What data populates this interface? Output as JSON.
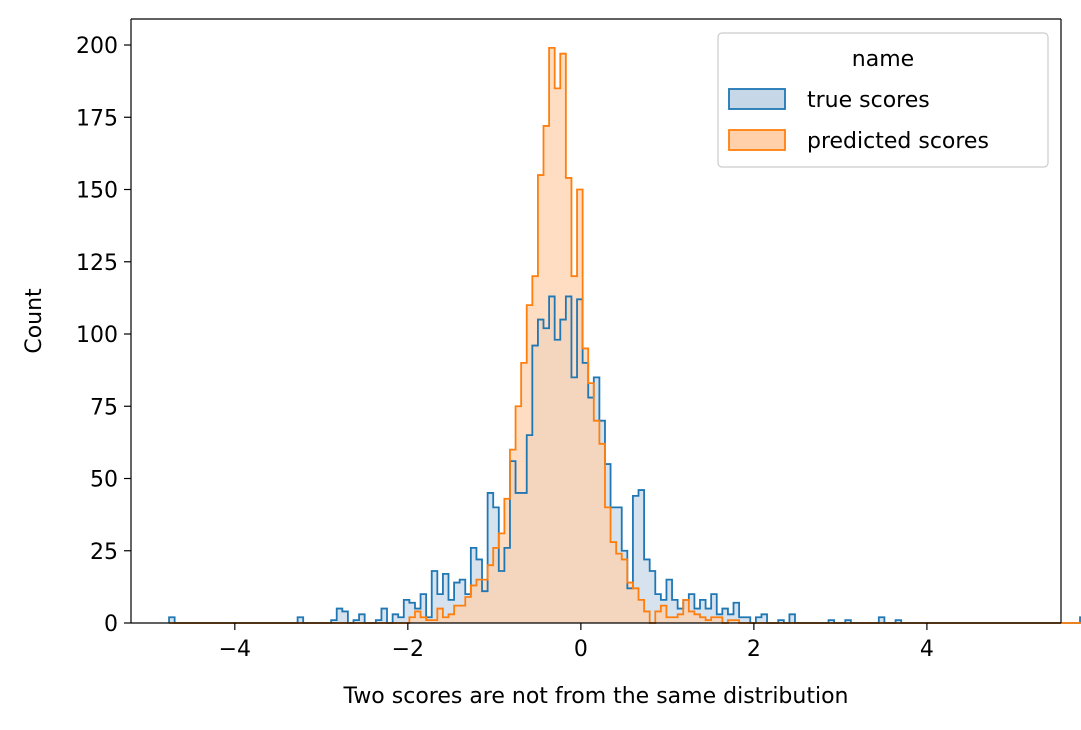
{
  "chart_data": {
    "type": "histogram",
    "title": "",
    "xlabel": "Two scores are not from the same distribution",
    "ylabel": "Count",
    "xlim": [
      -5.2,
      5.55
    ],
    "ylim": [
      0,
      209
    ],
    "x_ticks": [
      -4,
      -2,
      0,
      2,
      4
    ],
    "x_tick_labels": [
      "−4",
      "−2",
      "0",
      "2",
      "4"
    ],
    "y_ticks": [
      0,
      25,
      50,
      75,
      100,
      125,
      150,
      175,
      200
    ],
    "y_tick_labels": [
      "0",
      "25",
      "50",
      "75",
      "100",
      "125",
      "150",
      "175",
      "200"
    ],
    "grid": false,
    "element": "step",
    "bin_start": -4.76,
    "bin_width": 0.0646,
    "legend": {
      "title": "name",
      "position": "top-right"
    },
    "series": [
      {
        "name": "true scores",
        "color": "#1f77b4",
        "fill": "#c6d7e8",
        "counts": [
          2,
          0,
          0,
          0,
          0,
          0,
          0,
          0,
          0,
          0,
          0,
          0,
          0,
          0,
          0,
          0,
          0,
          0,
          0,
          0,
          0,
          0,
          0,
          2,
          0,
          0,
          0,
          0,
          0,
          1,
          5,
          4,
          0,
          1,
          3,
          0,
          0,
          1,
          5,
          0,
          3,
          2,
          8,
          7,
          5,
          10,
          2,
          18,
          10,
          17,
          8,
          14,
          15,
          10,
          26,
          22,
          11,
          45,
          40,
          18,
          26,
          56,
          45,
          45,
          65,
          96,
          105,
          102,
          113,
          98,
          105,
          113,
          85,
          112,
          90,
          78,
          85,
          70,
          55,
          40,
          40,
          25,
          12,
          44,
          46,
          22,
          18,
          10,
          8,
          15,
          8,
          5,
          8,
          10,
          5,
          8,
          5,
          10,
          3,
          5,
          3,
          7,
          2,
          2,
          0,
          2,
          3,
          0,
          0,
          1,
          0,
          3,
          0,
          0,
          0,
          0,
          0,
          0,
          1,
          0,
          0,
          1,
          0,
          0,
          0,
          0,
          0,
          2,
          0,
          0,
          1,
          0,
          0,
          0,
          0,
          0,
          0,
          0,
          0,
          0,
          0,
          0,
          0,
          0,
          0,
          0,
          0,
          0,
          0,
          0,
          0,
          0,
          0,
          0,
          0,
          0,
          0,
          0,
          0,
          0,
          0,
          0,
          0,
          2
        ]
      },
      {
        "name": "predicted scores",
        "color": "#ff7f0e",
        "fill": "#ffd0aa",
        "counts": [
          0,
          0,
          0,
          0,
          0,
          0,
          0,
          0,
          0,
          0,
          0,
          0,
          0,
          0,
          0,
          0,
          0,
          0,
          0,
          0,
          0,
          0,
          0,
          0,
          0,
          0,
          0,
          0,
          0,
          0,
          0,
          0,
          0,
          0,
          0,
          0,
          0,
          0,
          0,
          0,
          0,
          0,
          0,
          2,
          4,
          2,
          1,
          1,
          5,
          2,
          3,
          6,
          6,
          9,
          13,
          15,
          15,
          20,
          26,
          31,
          43,
          60,
          75,
          90,
          110,
          120,
          155,
          172,
          199,
          185,
          197,
          154,
          120,
          150,
          95,
          83,
          70,
          62,
          40,
          28,
          24,
          22,
          14,
          12,
          8,
          4,
          0,
          4,
          6,
          2,
          2,
          3,
          8,
          4,
          3,
          2,
          1,
          2,
          2,
          0,
          1,
          1,
          0,
          0,
          0,
          0,
          0,
          0,
          0,
          0,
          0,
          0,
          0,
          0,
          0,
          0,
          0,
          0,
          0,
          0,
          0,
          0,
          0,
          0,
          0,
          0,
          0,
          0,
          0,
          0,
          0,
          0,
          0,
          0,
          0,
          0,
          0,
          0,
          0,
          0,
          0,
          0,
          0,
          0,
          0,
          0,
          0,
          0,
          0,
          0,
          0,
          0,
          0,
          0,
          0,
          0,
          0,
          0,
          0,
          0,
          0,
          0,
          0,
          0
        ]
      }
    ]
  }
}
